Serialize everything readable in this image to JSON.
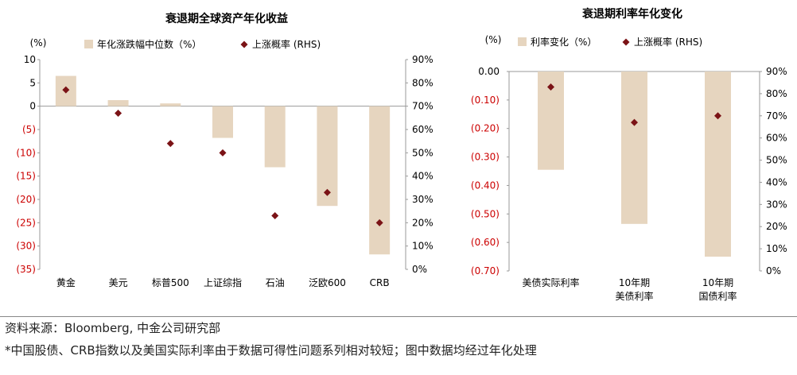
{
  "chart_data": [
    {
      "type": "bar",
      "title": "衰退期全球资产年化收益",
      "categories": [
        "黄金",
        "美元",
        "标普500",
        "上证综指",
        "石油",
        "泛欧600",
        "CRB"
      ],
      "series": [
        {
          "name": "年化涨跌幅中位数（%）",
          "axis": "left",
          "values": [
            6.5,
            1.3,
            0.6,
            -6.8,
            -13.1,
            -21.4,
            -31.8
          ]
        },
        {
          "name": "上涨概率 (RHS)",
          "axis": "right",
          "type": "scatter",
          "values": [
            0.77,
            0.67,
            0.54,
            0.5,
            0.23,
            0.33,
            0.2
          ]
        }
      ],
      "yunit": "(%)",
      "ylim": [
        -35,
        10
      ],
      "yticks": [
        10,
        5,
        0,
        -5,
        -10,
        -15,
        -20,
        -25,
        -30,
        -35
      ],
      "ytick_labels": [
        "10",
        "5",
        "0",
        "(5)",
        "(10)",
        "(15)",
        "(20)",
        "(25)",
        "(30)",
        "(35)"
      ],
      "y2lim": [
        0,
        0.9
      ],
      "y2ticks": [
        0.9,
        0.8,
        0.7,
        0.6,
        0.5,
        0.4,
        0.3,
        0.2,
        0.1,
        0
      ],
      "y2tick_labels": [
        "90%",
        "80%",
        "70%",
        "60%",
        "50%",
        "40%",
        "30%",
        "20%",
        "10%",
        "0%"
      ],
      "legend_position": "top"
    },
    {
      "type": "bar",
      "title": "衰退期利率年化变化",
      "categories": [
        "美债实际利率",
        "10年期\n美债利率",
        "10年期\n国债利率"
      ],
      "series": [
        {
          "name": "利率变化（%）",
          "axis": "left",
          "values": [
            -0.345,
            -0.535,
            -0.65
          ]
        },
        {
          "name": "上涨概率 (RHS)",
          "axis": "right",
          "type": "scatter",
          "values": [
            0.83,
            0.67,
            0.7
          ]
        }
      ],
      "yunit": "(%)",
      "ylim": [
        -0.7,
        0
      ],
      "yticks": [
        0,
        -0.1,
        -0.2,
        -0.3,
        -0.4,
        -0.5,
        -0.6,
        -0.7
      ],
      "ytick_labels": [
        "0.00",
        "(0.10)",
        "(0.20)",
        "(0.30)",
        "(0.40)",
        "(0.50)",
        "(0.60)",
        "(0.70)"
      ],
      "y2lim": [
        0,
        0.9
      ],
      "y2ticks": [
        0.9,
        0.8,
        0.7,
        0.6,
        0.5,
        0.4,
        0.3,
        0.2,
        0.1,
        0
      ],
      "y2tick_labels": [
        "90%",
        "80%",
        "70%",
        "60%",
        "50%",
        "40%",
        "30%",
        "20%",
        "10%",
        "0%"
      ],
      "legend_position": "top"
    }
  ],
  "colors": {
    "bar": "#e6d5bf",
    "marker": "#7b1316",
    "negative_tick": "#cc0000",
    "axis": "#999999"
  },
  "footer": {
    "source": "资料来源：Bloomberg, 中金公司研究部",
    "note": "*中国股债、CRB指数以及美国实际利率由于数据可得性问题系列相对较短；图中数据均经过年化处理"
  }
}
